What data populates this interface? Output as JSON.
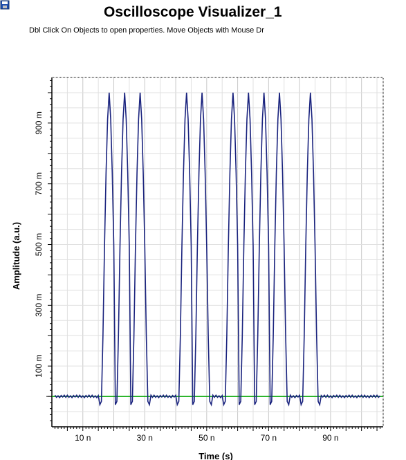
{
  "window": {
    "icon": "save-icon",
    "title": "Oscilloscope Visualizer_1",
    "subtitle": "Dbl Click On Objects to open properties.  Move Objects with Mouse Dr"
  },
  "chart_data": {
    "type": "line",
    "xlabel": "Time (s)",
    "ylabel": "Amplitude (a.u.)",
    "xlim": [
      0,
      107
    ],
    "ylim": [
      -0.1,
      1.05
    ],
    "x_ticks": [
      10,
      30,
      50,
      70,
      90
    ],
    "x_tick_labels": [
      "10 n",
      "30 n",
      "50 n",
      "70 n",
      "90 n"
    ],
    "y_ticks": [
      0.1,
      0.3,
      0.5,
      0.7,
      0.9
    ],
    "y_tick_labels": [
      "100 m",
      "300 m",
      "500 m",
      "700 m",
      "900 m"
    ],
    "grid": true,
    "series": [
      {
        "color": "#1a237e",
        "pulse_center_times": [
          18.5,
          23.5,
          28.5,
          43.5,
          48.5,
          58.5,
          63.5,
          68.5,
          73.5,
          83.5
        ],
        "pulse_peak": 1.0,
        "baseline": 0.0
      },
      {
        "color": "#00aa00",
        "x": [
          0,
          107
        ],
        "y": [
          0,
          0
        ]
      }
    ]
  }
}
